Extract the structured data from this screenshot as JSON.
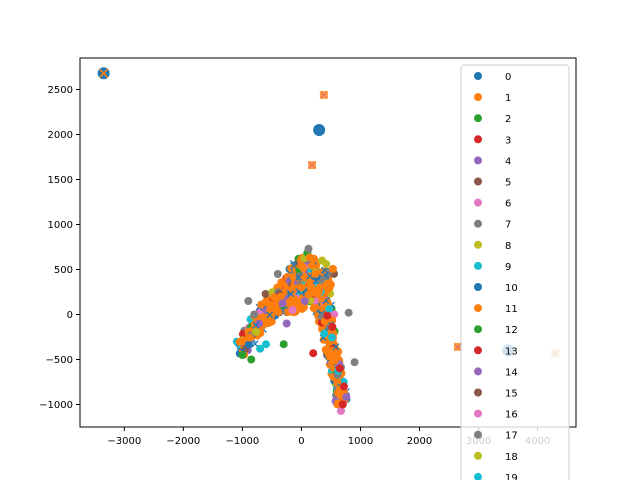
{
  "chart_data": {
    "type": "scatter",
    "title": "",
    "xlabel": "",
    "ylabel": "",
    "xlim": [
      -3750,
      4650
    ],
    "ylim": [
      -1250,
      2850
    ],
    "xticks": [
      -3000,
      -2000,
      -1000,
      0,
      1000,
      2000,
      3000,
      4000
    ],
    "yticks": [
      -1000,
      -500,
      0,
      500,
      1000,
      1500,
      2000,
      2500
    ],
    "grid": false,
    "legend_position": "right (overflowing bottom)",
    "legend_entries": [
      "0",
      "1",
      "2",
      "3",
      "4",
      "5",
      "6",
      "7",
      "8",
      "9",
      "10",
      "11",
      "12",
      "13",
      "14",
      "15",
      "16",
      "17",
      "18",
      "19"
    ],
    "series_colors": [
      "#1f77b4",
      "#ff7f0e",
      "#2ca02c",
      "#d62728",
      "#9467bd",
      "#8c564b",
      "#e377c2",
      "#7f7f7f",
      "#bcbd22",
      "#17becf",
      "#1f77b4",
      "#ff7f0e",
      "#2ca02c",
      "#d62728",
      "#9467bd",
      "#8c564b",
      "#e377c2",
      "#7f7f7f",
      "#bcbd22",
      "#17becf"
    ],
    "highlight_points": [
      {
        "series": "0",
        "x": -3350,
        "y": 2680,
        "marker": "large-dot-with-x"
      },
      {
        "series": "0",
        "x": 300,
        "y": 2050,
        "marker": "large-dot"
      },
      {
        "series": "1",
        "x": 380,
        "y": 2440,
        "marker": "square"
      },
      {
        "series": "1",
        "x": 180,
        "y": 1660,
        "marker": "square"
      },
      {
        "series": "1",
        "x": 2650,
        "y": -360,
        "marker": "square"
      },
      {
        "series": "8",
        "x": 4300,
        "y": -430,
        "marker": "square"
      },
      {
        "series": "10",
        "x": 3500,
        "y": -400,
        "marker": "large-dot"
      }
    ]
  }
}
